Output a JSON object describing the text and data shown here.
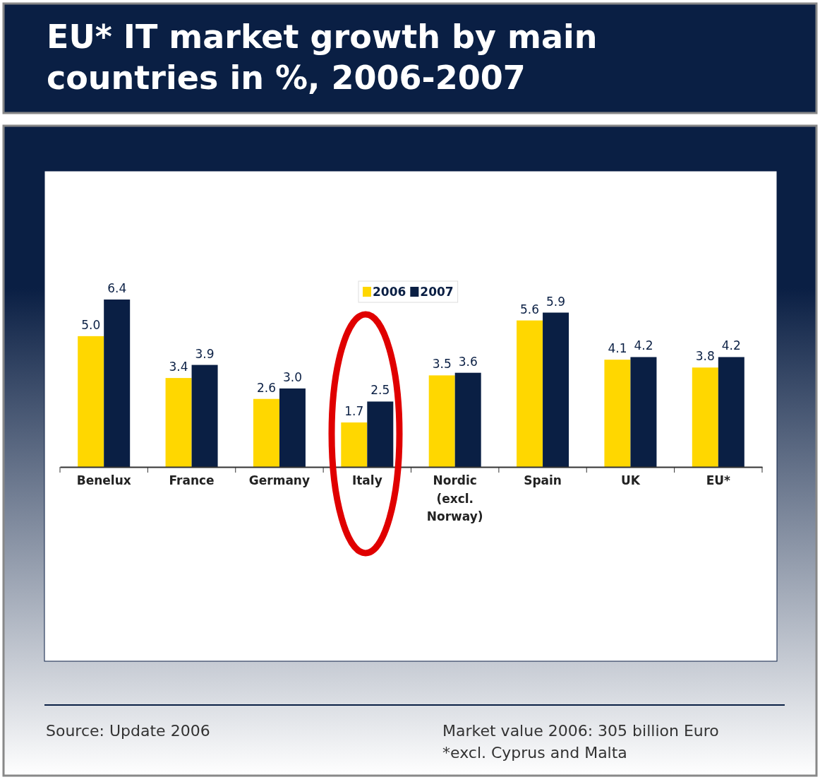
{
  "chart_data": {
    "type": "bar",
    "title": "EU* IT market growth by main countries in %, 2006-2007",
    "categories": [
      "Benelux",
      "France",
      "Germany",
      "Italy",
      "Nordic (excl. Norway)",
      "Spain",
      "UK",
      "EU*"
    ],
    "series": [
      {
        "name": "2006",
        "color": "#ffd700",
        "values": [
          5.0,
          3.4,
          2.6,
          1.7,
          3.5,
          5.6,
          4.1,
          3.8
        ],
        "value_labels": [
          "5.0",
          "3.4",
          "2.6",
          "1.7",
          "3.5",
          "5.6",
          "4.1",
          "3.8"
        ]
      },
      {
        "name": "2007",
        "color": "#0a1f44",
        "values": [
          6.4,
          3.9,
          3.0,
          2.5,
          3.6,
          5.9,
          4.2,
          4.2
        ],
        "value_labels": [
          "6.4",
          "3.9",
          "3.0",
          "2.5",
          "3.6",
          "5.9",
          "4.2",
          "4.2"
        ]
      }
    ],
    "legend": "top",
    "tick_labels": "x",
    "annotations": [
      "Source: Update 2006",
      "Market value 2006: 305 billion Euro",
      "*excl. Cyprus and Malta"
    ]
  }
}
